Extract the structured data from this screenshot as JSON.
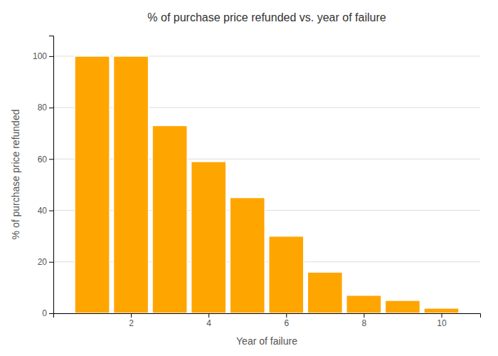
{
  "chart_data": {
    "type": "bar",
    "title": "% of purchase price refunded vs. year of failure",
    "xlabel": "Year of failure",
    "ylabel": "% of purchase price refunded",
    "x": [
      1,
      2,
      3,
      4,
      5,
      6,
      7,
      8,
      9,
      10
    ],
    "values": [
      100,
      100,
      73,
      59,
      45,
      30,
      16,
      7,
      5,
      2
    ],
    "color": "#FFA500",
    "xlim": [
      0,
      11
    ],
    "xticks": [
      2,
      4,
      6,
      8,
      10
    ],
    "ylim": [
      0,
      108
    ],
    "yticks": [
      0,
      20,
      40,
      60,
      80,
      100
    ],
    "grid": true
  }
}
